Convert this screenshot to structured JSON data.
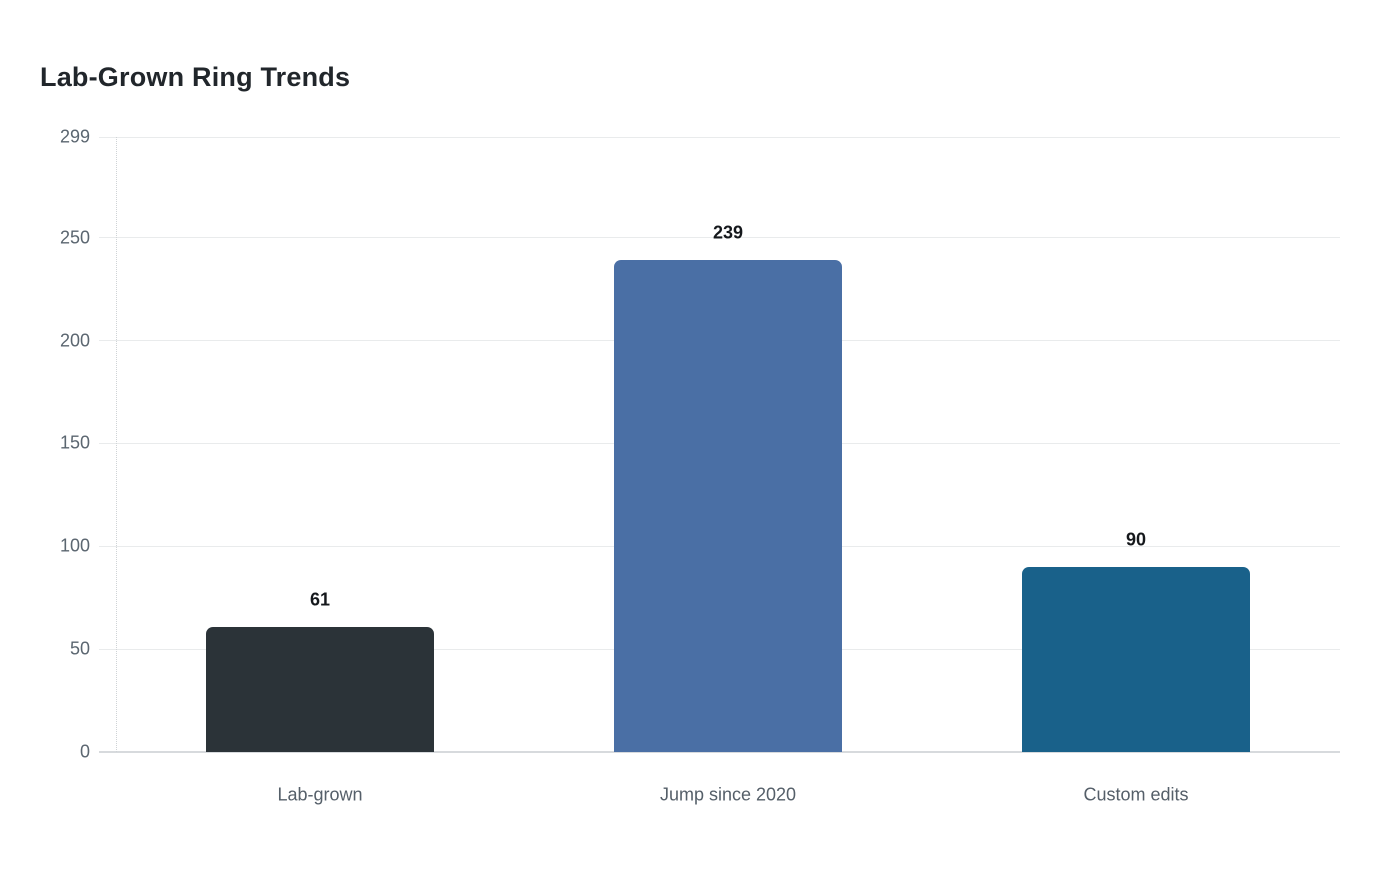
{
  "chart_data": {
    "type": "bar",
    "title": "Lab-Grown Ring Trends",
    "categories": [
      "Lab-grown",
      "Jump since 2020",
      "Custom edits"
    ],
    "values": [
      61,
      239,
      90
    ],
    "value_labels": [
      "61",
      "239",
      "90"
    ],
    "bar_colors": [
      "#2b3338",
      "#4a6fa5",
      "#19618a"
    ],
    "xlabel": "",
    "ylabel": "",
    "ylim": [
      0,
      299
    ],
    "yticks": [
      0,
      50,
      100,
      150,
      200,
      250,
      299
    ],
    "grid": true,
    "legend": false
  },
  "colors": {
    "background": "#ffffff",
    "title_text": "#21262b",
    "grid_line": "#e9ebec",
    "baseline": "#d7dadd",
    "axis_dotted": "#cfd3d6",
    "tick_label": "#5b6670",
    "category_label": "#555f69",
    "value_label": "#15181c"
  }
}
